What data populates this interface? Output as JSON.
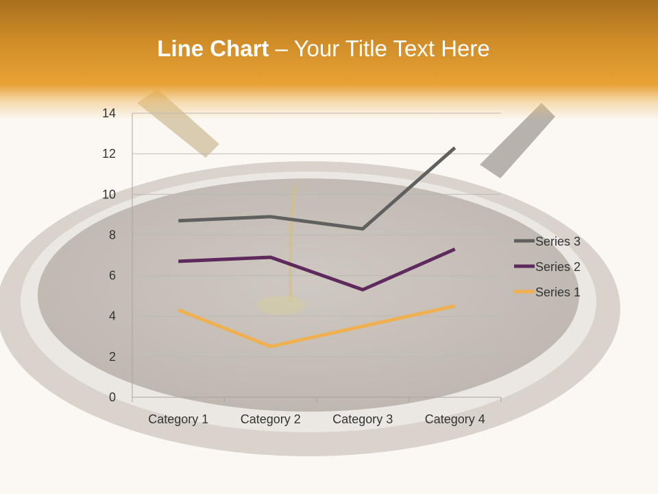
{
  "slide": {
    "title_bold": "Line Chart",
    "title_rest": " – Your Title Text Here"
  },
  "chart_data": {
    "type": "line",
    "stacked": true,
    "categories": [
      "Category 1",
      "Category 2",
      "Category 3",
      "Category 4"
    ],
    "series": [
      {
        "name": "Series 1",
        "values": [
          4.3,
          2.5,
          3.5,
          4.5
        ],
        "color": "#f0b050"
      },
      {
        "name": "Series 2",
        "values": [
          2.4,
          4.4,
          1.8,
          2.8
        ],
        "color": "#5e2a5e"
      },
      {
        "name": "Series 3",
        "values": [
          2,
          2,
          3,
          5
        ],
        "color": "#606060"
      }
    ],
    "ylim": [
      0,
      14
    ],
    "yticks": [
      "0",
      "2",
      "4",
      "6",
      "8",
      "10",
      "12",
      "14"
    ],
    "grid": true,
    "legend": "right",
    "title": "",
    "xlabel": "",
    "ylabel": ""
  }
}
